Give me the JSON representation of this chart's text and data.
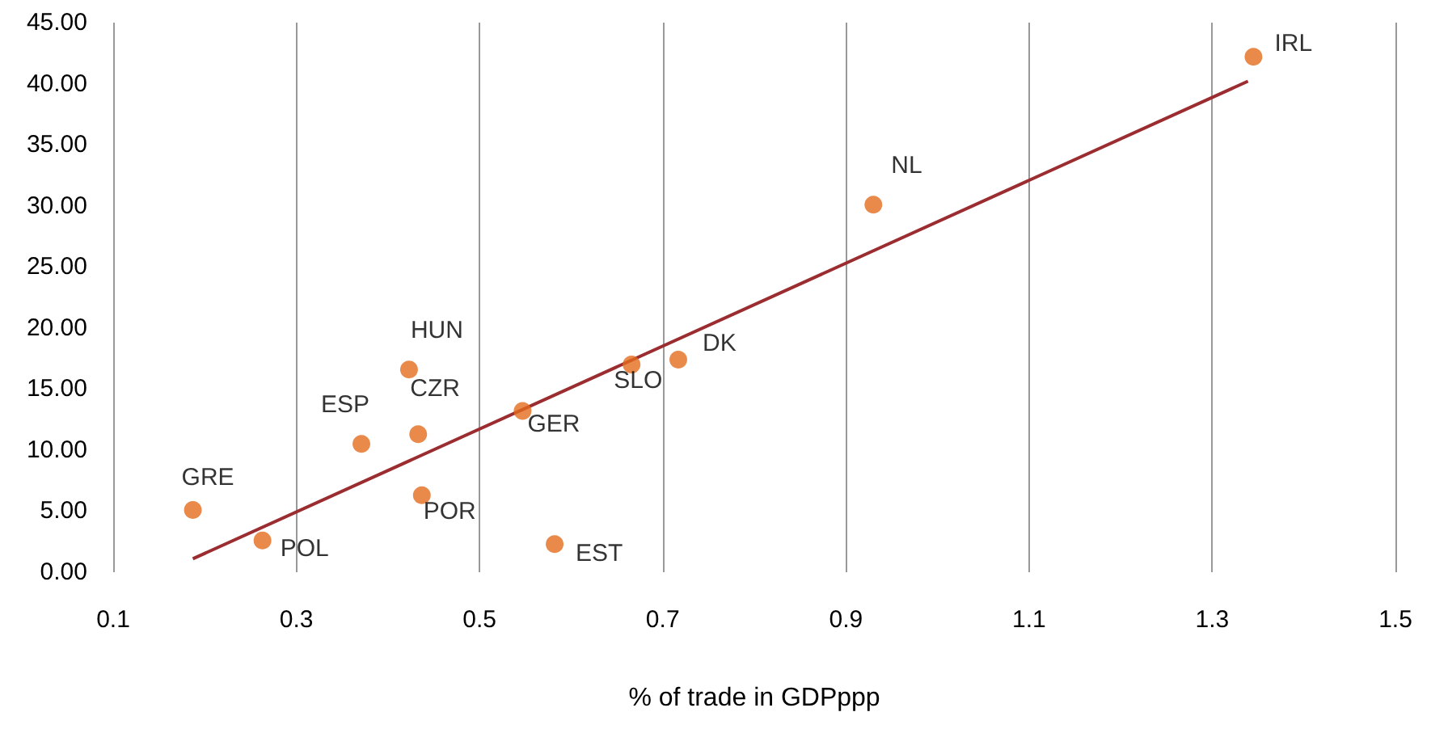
{
  "chart_data": {
    "type": "scatter",
    "xlabel": "% of trade in GDPppp",
    "series": [
      {
        "color": "#e36c1d",
        "marker": "circle",
        "x": [
          0.187,
          0.263,
          0.371,
          0.423,
          0.433,
          0.437,
          0.547,
          0.582,
          0.666,
          0.717,
          0.93,
          1.345
        ],
        "values": [
          5.1,
          2.6,
          10.5,
          16.6,
          11.3,
          6.3,
          13.2,
          2.3,
          17.0,
          17.4,
          30.1,
          42.2
        ]
      },
      {
        "type": "line",
        "color": "#9b2d30",
        "marker": "none",
        "x": [
          0.187,
          1.339
        ],
        "values": [
          1.1,
          40.2
        ]
      }
    ],
    "annotations": [
      {
        "text": "GRE",
        "x": 0.187,
        "y": 5.1
      },
      {
        "text": "POL",
        "x": 0.263,
        "y": 2.6
      },
      {
        "text": "ESP",
        "x": 0.371,
        "y": 10.5
      },
      {
        "text": "HUN",
        "x": 0.423,
        "y": 16.6
      },
      {
        "text": "CZR",
        "x": 0.433,
        "y": 11.3
      },
      {
        "text": "POR",
        "x": 0.437,
        "y": 6.3
      },
      {
        "text": "GER",
        "x": 0.547,
        "y": 13.2
      },
      {
        "text": "EST",
        "x": 0.582,
        "y": 2.3
      },
      {
        "text": "SLO",
        "x": 0.666,
        "y": 17.0
      },
      {
        "text": "DK",
        "x": 0.717,
        "y": 17.4
      },
      {
        "text": "NL",
        "x": 0.93,
        "y": 30.1
      },
      {
        "text": "IRL",
        "x": 1.345,
        "y": 42.2
      }
    ],
    "xlim": [
      0.1,
      1.5
    ],
    "xticks": [
      0.1,
      0.3,
      0.5,
      0.7,
      0.9,
      1.1,
      1.3,
      1.5
    ],
    "ylim": [
      0,
      45
    ],
    "yticks": [
      {
        "value": 0,
        "label": "0.00"
      },
      {
        "value": 5,
        "label": "5.00"
      },
      {
        "value": 10,
        "label": "10.00"
      },
      {
        "value": 15,
        "label": "15.00"
      },
      {
        "value": 20,
        "label": "20.00"
      },
      {
        "value": 25,
        "label": "25.00"
      },
      {
        "value": 30,
        "label": "30.00"
      },
      {
        "value": 35,
        "label": "35.00"
      },
      {
        "value": 40,
        "label": "40.00"
      },
      {
        "value": 45,
        "label": "45.00"
      }
    ],
    "grid": "x"
  }
}
